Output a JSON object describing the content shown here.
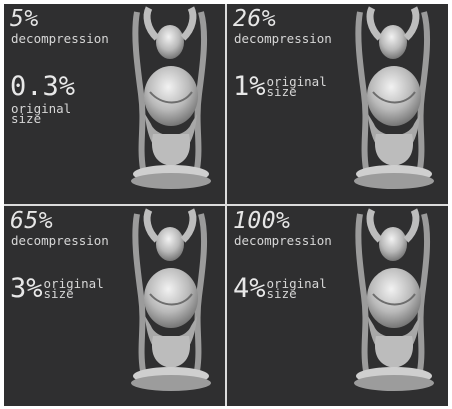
{
  "panels": [
    {
      "percent": "5%",
      "label": "decompression",
      "size_value": "0.3%",
      "size_label": "original size"
    },
    {
      "percent": "26%",
      "label": "decompression",
      "size_value": "1%",
      "size_label": "original size"
    },
    {
      "percent": "65%",
      "label": "decompression",
      "size_value": "3%",
      "size_label": "original size"
    },
    {
      "percent": "100%",
      "label": "decompression",
      "size_value": "4%",
      "size_label": "original size"
    }
  ],
  "colors": {
    "panel_background": "#2f2f30",
    "divider": "#dcdcdc",
    "text": "#e6e6e6"
  },
  "image_subject": "carved-statue-render"
}
